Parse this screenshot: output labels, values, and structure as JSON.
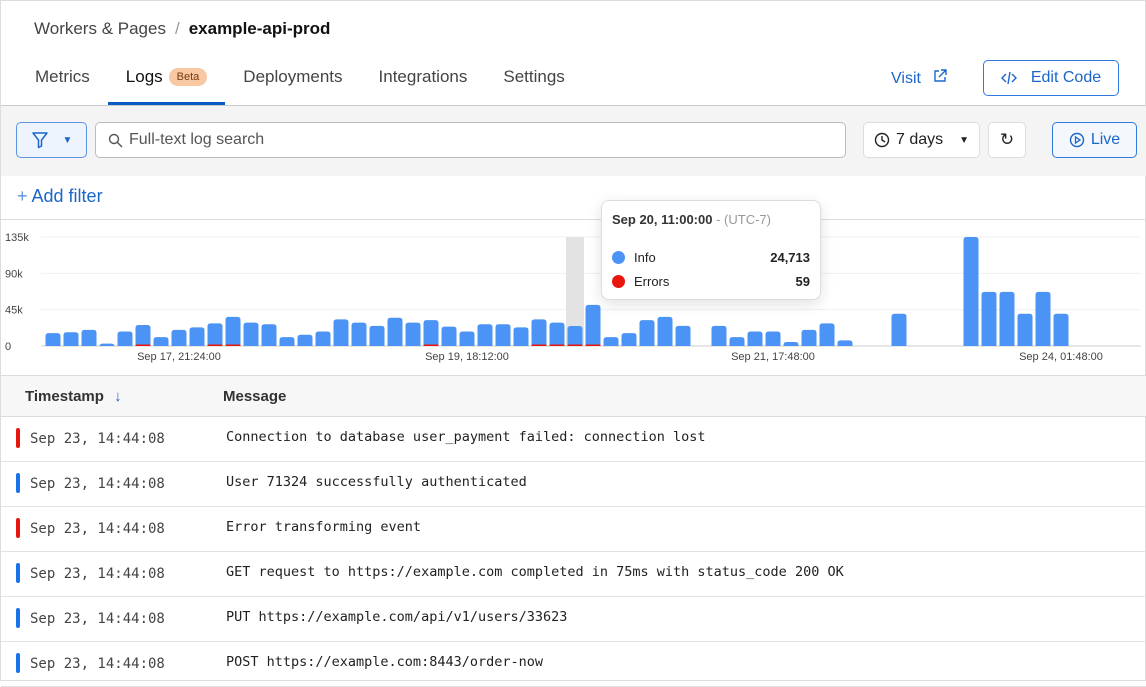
{
  "breadcrumb": {
    "parent": "Workers & Pages",
    "current": "example-api-prod"
  },
  "tabs": [
    {
      "label": "Metrics"
    },
    {
      "label": "Logs",
      "badge": "Beta",
      "active": true
    },
    {
      "label": "Deployments"
    },
    {
      "label": "Integrations"
    },
    {
      "label": "Settings"
    }
  ],
  "header_actions": {
    "visit": "Visit",
    "edit_code": "Edit Code"
  },
  "toolbar": {
    "search_placeholder": "Full-text log search",
    "range": "7 days",
    "live": "Live"
  },
  "add_filter": "Add filter",
  "colors": {
    "info": "#4b93f5",
    "errors": "#e8160c",
    "accent": "#0b5cc2"
  },
  "chart_data": {
    "type": "bar",
    "stacked": true,
    "ylim": [
      0,
      135000
    ],
    "y_ticks": [
      "0",
      "45k",
      "90k",
      "135k"
    ],
    "y_tick_values": [
      0,
      45000,
      90000,
      135000
    ],
    "x_ticks": [
      {
        "label": "Sep 17, 21:24:00",
        "index": 7
      },
      {
        "label": "Sep 19, 18:12:00",
        "index": 23
      },
      {
        "label": "Sep 21, 17:48:00",
        "index": 40
      },
      {
        "label": "Sep 24, 01:48:00",
        "index": 56
      }
    ],
    "series": [
      {
        "name": "Info",
        "values": [
          16000,
          17000,
          20000,
          3000,
          18000,
          26000,
          11000,
          20000,
          23000,
          28000,
          36000,
          29000,
          27000,
          11000,
          14000,
          18000,
          33000,
          29000,
          25000,
          35000,
          29000,
          32000,
          24000,
          18000,
          27000,
          27000,
          23000,
          33000,
          29000,
          24713,
          51000,
          11000,
          16000,
          32000,
          36000,
          25000,
          0,
          25000,
          11000,
          18000,
          18000,
          5000,
          20000,
          28000,
          7000,
          0,
          0,
          40000,
          0,
          0,
          0,
          135000,
          67000,
          67000,
          40000,
          67000,
          40000,
          0,
          0,
          0,
          0
        ]
      },
      {
        "name": "Errors",
        "values": [
          0,
          0,
          0,
          0,
          0,
          300,
          0,
          0,
          0,
          200,
          200,
          0,
          0,
          0,
          0,
          0,
          0,
          0,
          0,
          0,
          0,
          200,
          0,
          0,
          0,
          0,
          0,
          200,
          200,
          59,
          600,
          0,
          0,
          0,
          0,
          0,
          0,
          0,
          0,
          0,
          0,
          0,
          0,
          0,
          0,
          0,
          0,
          0,
          0,
          0,
          0,
          0,
          0,
          0,
          0,
          0,
          0,
          0,
          0,
          0,
          0
        ]
      }
    ],
    "highlight_index": 29,
    "tooltip": {
      "title": "Sep 20, 11:00:00",
      "tz": "- (UTC-7)",
      "info_label": "Info",
      "info_value": "24,713",
      "errors_label": "Errors",
      "errors_value": "59"
    }
  },
  "table": {
    "columns": {
      "timestamp": "Timestamp",
      "message": "Message"
    },
    "rows": [
      {
        "level": "error",
        "timestamp": "Sep 23, 14:44:08",
        "message": "Connection to database user_payment failed: connection lost"
      },
      {
        "level": "info",
        "timestamp": "Sep 23, 14:44:08",
        "message": "User 71324 successfully authenticated"
      },
      {
        "level": "error",
        "timestamp": "Sep 23, 14:44:08",
        "message": "Error transforming event"
      },
      {
        "level": "info",
        "timestamp": "Sep 23, 14:44:08",
        "message": "GET request to https://example.com completed in 75ms with status_code 200 OK"
      },
      {
        "level": "info",
        "timestamp": "Sep 23, 14:44:08",
        "message": "PUT https://example.com/api/v1/users/33623"
      },
      {
        "level": "info",
        "timestamp": "Sep 23, 14:44:08",
        "message": "POST https://example.com:8443/order-now"
      }
    ]
  }
}
